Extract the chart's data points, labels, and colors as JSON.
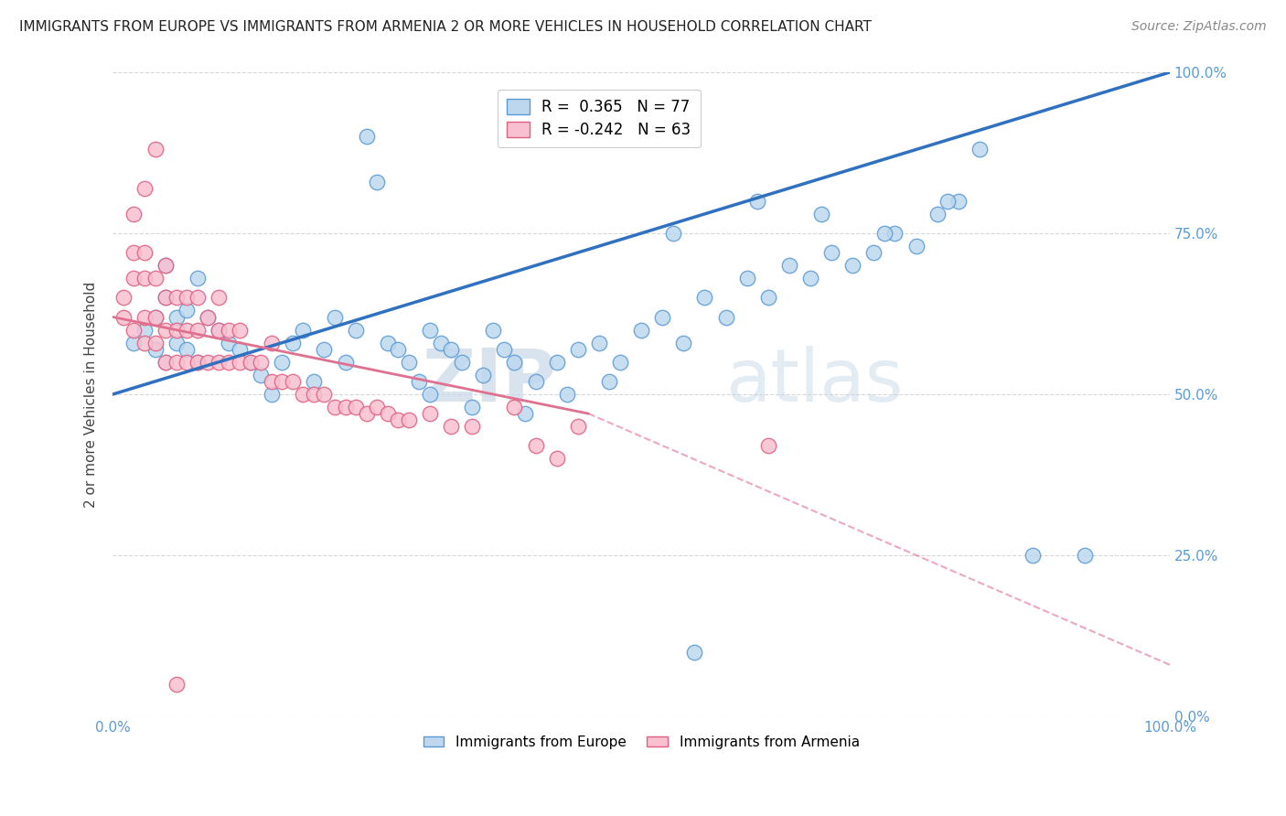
{
  "title": "IMMIGRANTS FROM EUROPE VS IMMIGRANTS FROM ARMENIA 2 OR MORE VEHICLES IN HOUSEHOLD CORRELATION CHART",
  "source": "Source: ZipAtlas.com",
  "ylabel": "2 or more Vehicles in Household",
  "xmin": 0.0,
  "xmax": 1.0,
  "ymin": 0.0,
  "ymax": 1.0,
  "europe_R": 0.365,
  "europe_N": 77,
  "armenia_R": -0.242,
  "armenia_N": 63,
  "europe_color": "#bdd7ee",
  "armenia_color": "#f8c0d0",
  "europe_edge_color": "#5b9bd5",
  "armenia_edge_color": "#e06080",
  "europe_line_color": "#3070c0",
  "armenia_line_color": "#e07090",
  "watermark_zip": "ZIP",
  "watermark_atlas": "atlas",
  "europe_scatter_x": [
    0.02,
    0.03,
    0.04,
    0.04,
    0.05,
    0.05,
    0.05,
    0.06,
    0.06,
    0.07,
    0.07,
    0.08,
    0.08,
    0.09,
    0.1,
    0.11,
    0.12,
    0.13,
    0.14,
    0.15,
    0.16,
    0.17,
    0.18,
    0.19,
    0.2,
    0.21,
    0.22,
    0.23,
    0.24,
    0.25,
    0.26,
    0.27,
    0.28,
    0.29,
    0.3,
    0.3,
    0.31,
    0.32,
    0.33,
    0.35,
    0.36,
    0.37,
    0.38,
    0.4,
    0.42,
    0.44,
    0.46,
    0.48,
    0.5,
    0.52,
    0.54,
    0.56,
    0.58,
    0.6,
    0.62,
    0.64,
    0.66,
    0.68,
    0.7,
    0.72,
    0.74,
    0.76,
    0.78,
    0.8,
    0.34,
    0.39,
    0.43,
    0.47,
    0.53,
    0.61,
    0.67,
    0.73,
    0.79,
    0.82,
    0.87,
    0.92,
    0.55
  ],
  "europe_scatter_y": [
    0.58,
    0.6,
    0.57,
    0.62,
    0.55,
    0.65,
    0.7,
    0.58,
    0.62,
    0.57,
    0.63,
    0.55,
    0.68,
    0.62,
    0.6,
    0.58,
    0.57,
    0.55,
    0.53,
    0.5,
    0.55,
    0.58,
    0.6,
    0.52,
    0.57,
    0.62,
    0.55,
    0.6,
    0.9,
    0.83,
    0.58,
    0.57,
    0.55,
    0.52,
    0.6,
    0.5,
    0.58,
    0.57,
    0.55,
    0.53,
    0.6,
    0.57,
    0.55,
    0.52,
    0.55,
    0.57,
    0.58,
    0.55,
    0.6,
    0.62,
    0.58,
    0.65,
    0.62,
    0.68,
    0.65,
    0.7,
    0.68,
    0.72,
    0.7,
    0.72,
    0.75,
    0.73,
    0.78,
    0.8,
    0.48,
    0.47,
    0.5,
    0.52,
    0.75,
    0.8,
    0.78,
    0.75,
    0.8,
    0.88,
    0.25,
    0.25,
    0.1
  ],
  "armenia_scatter_x": [
    0.01,
    0.01,
    0.02,
    0.02,
    0.02,
    0.03,
    0.03,
    0.03,
    0.03,
    0.04,
    0.04,
    0.04,
    0.05,
    0.05,
    0.05,
    0.05,
    0.06,
    0.06,
    0.06,
    0.07,
    0.07,
    0.07,
    0.08,
    0.08,
    0.08,
    0.09,
    0.09,
    0.1,
    0.1,
    0.1,
    0.11,
    0.11,
    0.12,
    0.12,
    0.13,
    0.14,
    0.15,
    0.15,
    0.16,
    0.17,
    0.18,
    0.19,
    0.2,
    0.21,
    0.22,
    0.23,
    0.24,
    0.25,
    0.26,
    0.27,
    0.28,
    0.3,
    0.32,
    0.34,
    0.38,
    0.4,
    0.42,
    0.44,
    0.62,
    0.02,
    0.03,
    0.04,
    0.06
  ],
  "armenia_scatter_y": [
    0.62,
    0.65,
    0.6,
    0.68,
    0.72,
    0.58,
    0.62,
    0.68,
    0.72,
    0.58,
    0.62,
    0.68,
    0.55,
    0.6,
    0.65,
    0.7,
    0.55,
    0.6,
    0.65,
    0.55,
    0.6,
    0.65,
    0.55,
    0.6,
    0.65,
    0.55,
    0.62,
    0.55,
    0.6,
    0.65,
    0.55,
    0.6,
    0.55,
    0.6,
    0.55,
    0.55,
    0.52,
    0.58,
    0.52,
    0.52,
    0.5,
    0.5,
    0.5,
    0.48,
    0.48,
    0.48,
    0.47,
    0.48,
    0.47,
    0.46,
    0.46,
    0.47,
    0.45,
    0.45,
    0.48,
    0.42,
    0.4,
    0.45,
    0.42,
    0.78,
    0.82,
    0.88,
    0.05
  ],
  "europe_line_endpoints": [
    0.0,
    1.0,
    0.5,
    1.0
  ],
  "armenia_line_solid_endpoints": [
    0.0,
    0.45,
    0.62,
    0.47
  ],
  "armenia_line_dashed_endpoints": [
    0.45,
    1.0,
    0.47,
    0.08
  ]
}
